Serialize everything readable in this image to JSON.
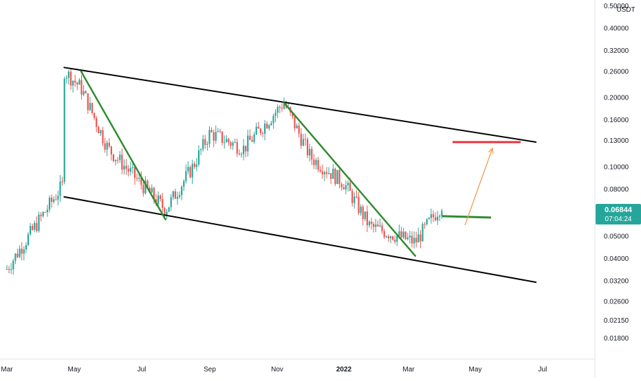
{
  "chart_data": {
    "type": "candlestick",
    "scale": "log",
    "currency_label": "USDT",
    "price_axis_ticks": [
      "0.50000",
      "0.40000",
      "0.32000",
      "0.26000",
      "0.20000",
      "0.16000",
      "0.13000",
      "0.10000",
      "0.08000",
      "0.05000",
      "0.04000",
      "0.03200",
      "0.02600",
      "0.02150",
      "0.01800"
    ],
    "time_axis_ticks": [
      "Mar",
      "May",
      "Jul",
      "Sep",
      "Nov",
      "2022",
      "Mar",
      "May",
      "Jul"
    ],
    "last_price": "0.06844",
    "countdown": "07:04:24",
    "ylim": [
      0.0165,
      0.52
    ],
    "grid": false,
    "colors": {
      "up": "#26a69a",
      "down": "#ef5350",
      "price_tag": "#26a69a",
      "channel": "#000000",
      "trendline": "#2e8b2e",
      "target": "#e8303a",
      "support": "#2e8b2e",
      "projection": "#f39c52"
    },
    "approx_close_path": [
      {
        "t": "Mar 2021",
        "price": 0.036
      },
      {
        "t": "Apr 2021",
        "price": 0.085
      },
      {
        "t": "late Apr 2021",
        "price": 0.27
      },
      {
        "t": "May 2021",
        "price": 0.22
      },
      {
        "t": "Jun 2021",
        "price": 0.12
      },
      {
        "t": "Jul 2021",
        "price": 0.065
      },
      {
        "t": "Aug 2021",
        "price": 0.1
      },
      {
        "t": "Sep 2021",
        "price": 0.14
      },
      {
        "t": "Oct 2021",
        "price": 0.12
      },
      {
        "t": "Nov 2021",
        "price": 0.19
      },
      {
        "t": "Dec 2021",
        "price": 0.11
      },
      {
        "t": "2022",
        "price": 0.085
      },
      {
        "t": "Feb 2022",
        "price": 0.055
      },
      {
        "t": "Mar 2022",
        "price": 0.047
      },
      {
        "t": "Apr 2022",
        "price": 0.0684
      }
    ],
    "annotations": {
      "channel_upper": [
        {
          "t": "Apr 2021",
          "price": 0.27
        },
        {
          "t": "Jun 2022",
          "price": 0.128
        }
      ],
      "channel_lower": [
        {
          "t": "Apr 2021",
          "price": 0.074
        },
        {
          "t": "Jun 2022",
          "price": 0.0315
        }
      ],
      "trendline_1": [
        {
          "t": "May 2021",
          "price": 0.26
        },
        {
          "t": "Jul 2021",
          "price": 0.059
        }
      ],
      "trendline_2": [
        {
          "t": "Nov 2021",
          "price": 0.19
        },
        {
          "t": "Mar 2022",
          "price": 0.041
        }
      ],
      "target_level": 0.128,
      "support_level": 0.061
    }
  }
}
